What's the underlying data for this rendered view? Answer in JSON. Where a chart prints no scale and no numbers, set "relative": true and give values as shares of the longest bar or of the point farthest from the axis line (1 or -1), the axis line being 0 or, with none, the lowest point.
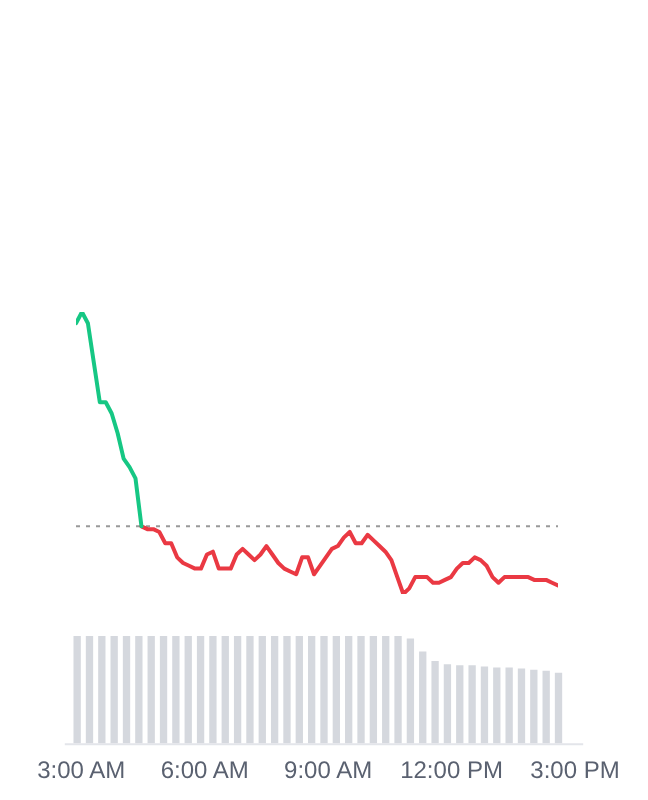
{
  "chart_data": [
    {
      "type": "line",
      "relative": true,
      "tick_labels": false,
      "marker": "none",
      "legend": false,
      "categories": [
        null,
        null,
        null,
        null,
        null,
        null,
        null,
        null,
        null,
        null,
        null,
        null,
        null,
        null,
        null,
        null,
        null,
        null,
        null,
        null,
        null,
        null,
        null,
        null,
        null,
        null,
        null,
        null,
        null,
        null,
        null,
        null,
        null,
        null,
        null,
        null,
        null,
        null,
        null,
        null,
        null,
        null,
        null,
        null,
        null,
        null,
        null,
        null,
        null,
        null,
        null,
        null,
        null,
        null,
        null,
        null,
        null,
        null,
        null,
        null,
        null,
        null,
        null,
        null,
        null,
        null,
        null,
        null,
        null,
        null,
        null,
        null,
        null,
        null,
        null,
        null,
        null,
        null,
        null,
        null,
        null,
        null
      ],
      "ref_lines": [
        {
          "axis": "y",
          "value": 0.24,
          "color": "#999999",
          "line_style": "dotted"
        }
      ],
      "series": [
        {
          "color": "#16c784",
          "values": [
            0.96,
            1,
            0.96,
            0.82,
            0.68,
            0.68,
            0.64,
            0.57,
            0.48,
            0.45,
            0.41,
            0.24,
            null,
            null,
            null,
            null,
            null,
            null,
            null,
            null,
            null,
            null,
            null,
            null,
            null,
            null,
            null,
            null,
            null,
            null,
            null,
            null,
            null,
            null,
            null,
            null,
            null,
            null,
            null,
            null,
            null,
            null,
            null,
            null,
            null,
            null,
            null,
            null,
            null,
            null,
            null,
            null,
            null,
            null,
            null,
            null,
            null,
            null,
            null,
            null,
            null,
            null,
            null,
            null,
            null,
            null,
            null,
            null,
            null,
            null,
            null,
            null,
            null,
            null,
            null,
            null,
            null,
            null,
            null,
            null,
            null,
            null
          ]
        },
        {
          "color": "#ea3943",
          "values": [
            null,
            null,
            null,
            null,
            null,
            null,
            null,
            null,
            null,
            null,
            null,
            0.24,
            0.23,
            0.23,
            0.22,
            0.18,
            0.18,
            0.13,
            0.11,
            0.1,
            0.09,
            0.09,
            0.14,
            0.15,
            0.09,
            0.09,
            0.09,
            0.14,
            0.16,
            0.14,
            0.12,
            0.14,
            0.17,
            0.14,
            0.11,
            0.09,
            0.08,
            0.07,
            0.13,
            0.13,
            0.07,
            0.1,
            0.13,
            0.16,
            0.17,
            0.2,
            0.22,
            0.18,
            0.18,
            0.21,
            0.19,
            0.17,
            0.15,
            0.12,
            0.06,
            0,
            0.02,
            0.06,
            0.06,
            0.06,
            0.04,
            0.04,
            0.05,
            0.06,
            0.09,
            0.11,
            0.11,
            0.13,
            0.12,
            0.1,
            0.06,
            0.04,
            0.06,
            0.06,
            0.06,
            0.06,
            0.06,
            0.05,
            0.05,
            0.05,
            0.04,
            0.03
          ]
        }
      ]
    },
    {
      "type": "bar",
      "relative": true,
      "xlim": [
        2.6,
        15.2
      ],
      "tick_labels": "x",
      "color": "#d5d8de",
      "xticks": [
        {
          "value": 3,
          "label": "3:00 AM"
        },
        {
          "value": 6,
          "label": "6:00 AM"
        },
        {
          "value": 9,
          "label": "9:00 AM"
        },
        {
          "value": 12,
          "label": "12:00 PM"
        },
        {
          "value": 15,
          "label": "3:00 PM"
        }
      ],
      "x": [
        2.9,
        3.2,
        3.5,
        3.8,
        4.1,
        4.4,
        4.7,
        5.0,
        5.3,
        5.6,
        5.9,
        6.2,
        6.5,
        6.8,
        7.1,
        7.4,
        7.7,
        8.0,
        8.3,
        8.6,
        8.9,
        9.2,
        9.5,
        9.8,
        10.1,
        10.4,
        10.7,
        11.0,
        11.3,
        11.6,
        11.9,
        12.2,
        12.5,
        12.8,
        13.1,
        13.4,
        13.7,
        14.0,
        14.3,
        14.6
      ],
      "values": [
        1,
        1,
        1,
        1,
        1,
        1,
        1,
        1,
        1,
        1,
        1,
        1,
        1,
        1,
        1,
        1,
        1,
        1,
        1,
        1,
        1,
        1,
        1,
        1,
        1,
        1,
        1,
        0.97,
        0.85,
        0.76,
        0.73,
        0.72,
        0.72,
        0.71,
        0.7,
        0.7,
        0.69,
        0.68,
        0.67,
        0.65
      ]
    }
  ]
}
